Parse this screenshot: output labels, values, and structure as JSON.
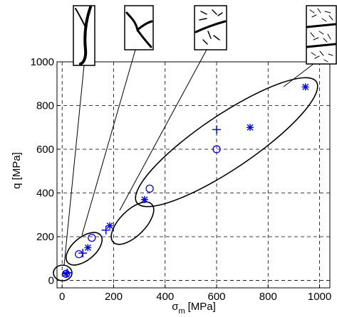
{
  "chart_data": {
    "type": "scatter",
    "xlabel": {
      "symbol": "σ",
      "subscript": "m",
      "unit": "[MPa]"
    },
    "ylabel": "q [MPa]",
    "xlim": [
      -20,
      1040
    ],
    "ylim": [
      -34,
      1000
    ],
    "xticks": [
      0,
      200,
      400,
      600,
      800,
      1000
    ],
    "yticks": [
      0,
      200,
      400,
      600,
      800,
      1000
    ],
    "grid": true,
    "series": [
      {
        "marker": "circle",
        "color": "#0000ff",
        "x": [
          15,
          65,
          115,
          340,
          600
        ],
        "values": [
          30,
          120,
          195,
          420,
          600
        ]
      },
      {
        "marker": "plus",
        "color": "#0000ff",
        "x": [
          20,
          80,
          170,
          600
        ],
        "values": [
          35,
          125,
          230,
          690
        ]
      },
      {
        "marker": "asterisk",
        "color": "#0000ff",
        "x": [
          15,
          100,
          185,
          320,
          730,
          945
        ],
        "values": [
          30,
          150,
          250,
          370,
          700,
          885
        ]
      }
    ]
  }
}
